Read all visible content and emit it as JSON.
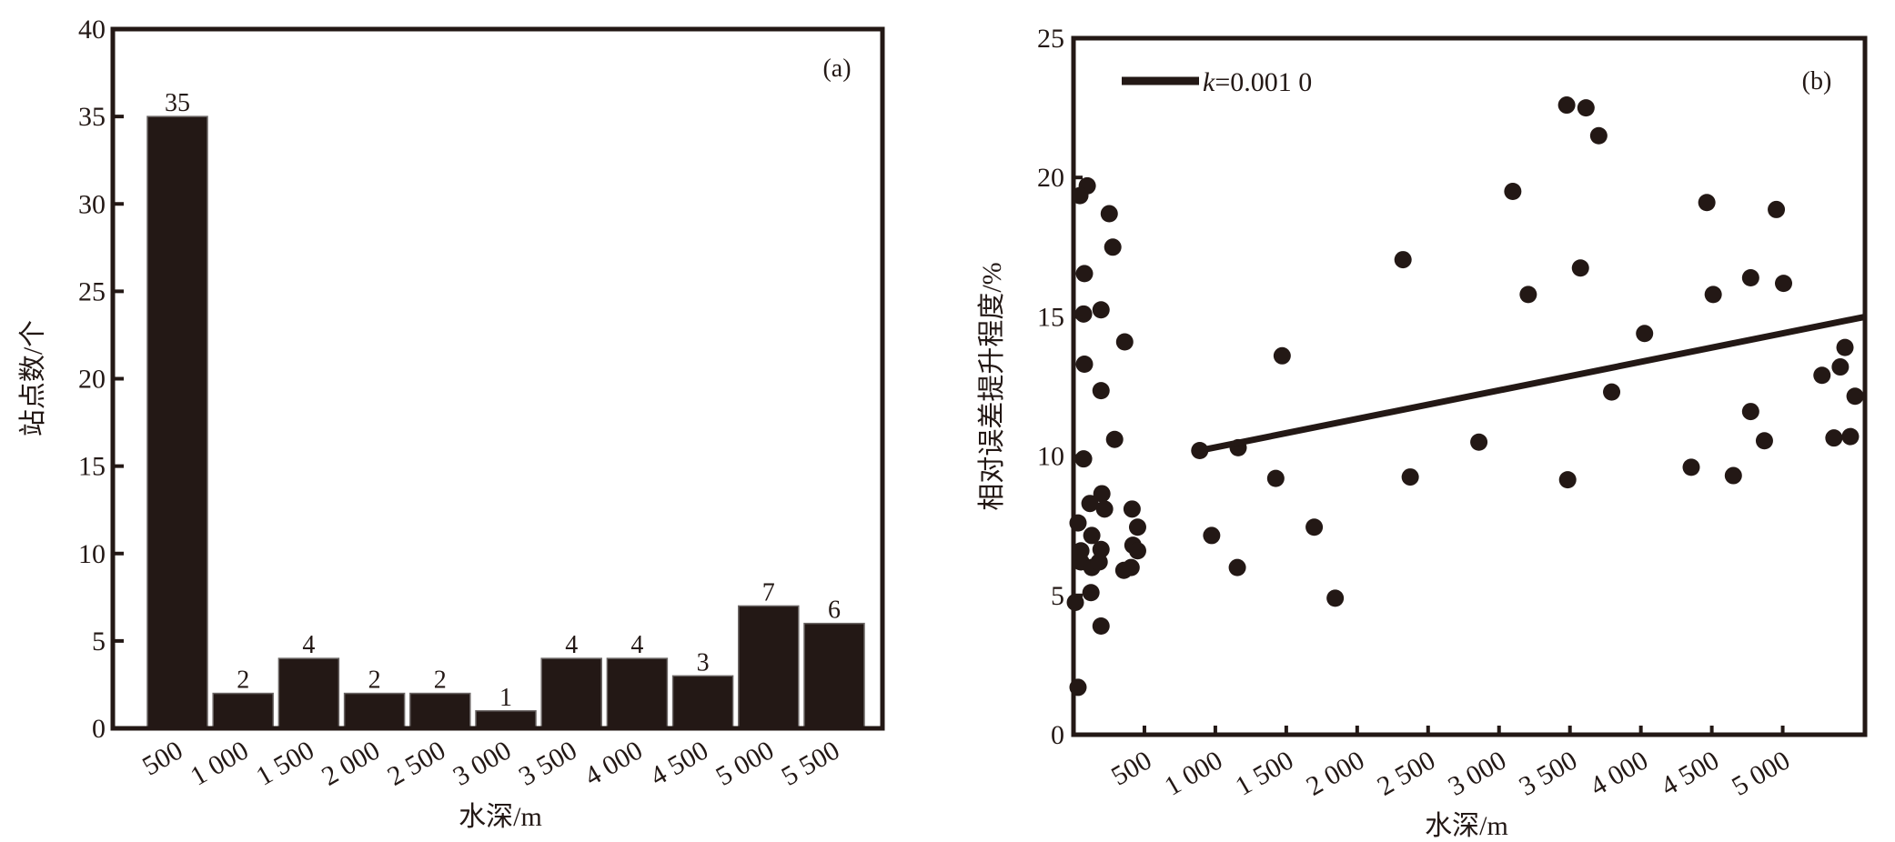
{
  "chart_data": [
    {
      "type": "bar",
      "panel_label": "(a)",
      "title": "",
      "xlabel": "水深/m",
      "ylabel": "站点数/个",
      "categories": [
        "500",
        "1 000",
        "1 500",
        "2 000",
        "2 500",
        "3 000",
        "3 500",
        "4 000",
        "4 500",
        "5 000",
        "5 500"
      ],
      "values": [
        35,
        2,
        4,
        2,
        2,
        1,
        4,
        4,
        3,
        7,
        6
      ],
      "data_labels": [
        "35",
        "2",
        "4",
        "2",
        "2",
        "1",
        "4",
        "4",
        "3",
        "7",
        "6"
      ],
      "ylim": [
        0,
        40
      ],
      "yticks": [
        0,
        5,
        10,
        15,
        20,
        25,
        30,
        35,
        40
      ],
      "ytick_labels": [
        "0",
        "5",
        "10",
        "15",
        "20",
        "25",
        "30",
        "35",
        "40"
      ],
      "grid": false,
      "bar_color": "#231815"
    },
    {
      "type": "scatter",
      "panel_label": "(b)",
      "title": "",
      "xlabel": "水深/m",
      "ylabel": "相对误差提升程度/%",
      "xlim": [
        0,
        5580
      ],
      "ylim": [
        0,
        25
      ],
      "xticks": [
        500,
        1000,
        1500,
        2000,
        2500,
        3000,
        3500,
        4000,
        4500,
        5000
      ],
      "xtick_labels": [
        "500",
        "1 000",
        "1 500",
        "2 000",
        "2 500",
        "3 000",
        "3 500",
        "4 000",
        "4 500",
        "5 000"
      ],
      "yticks": [
        0,
        5,
        10,
        15,
        20,
        25
      ],
      "ytick_labels": [
        "0",
        "5",
        "10",
        "15",
        "20",
        "25"
      ],
      "grid": false,
      "legend": {
        "position": "top-left",
        "entries": [
          {
            "italic": "k",
            "text": "=0.001 0"
          }
        ]
      },
      "trend_line": {
        "slope": 0.001,
        "x": [
          890,
          5580
        ],
        "y": [
          10.2,
          15.0
        ]
      },
      "marker_color": "#231815",
      "points": [
        [
          97,
          19.7
        ],
        [
          45,
          19.35
        ],
        [
          252,
          18.7
        ],
        [
          277,
          17.5
        ],
        [
          77,
          16.55
        ],
        [
          71,
          15.1
        ],
        [
          194,
          15.25
        ],
        [
          361,
          14.1
        ],
        [
          77,
          13.3
        ],
        [
          194,
          12.35
        ],
        [
          290,
          10.6
        ],
        [
          71,
          9.9
        ],
        [
          200,
          8.65
        ],
        [
          116,
          8.3
        ],
        [
          219,
          8.1
        ],
        [
          413,
          8.1
        ],
        [
          32,
          7.6
        ],
        [
          452,
          7.45
        ],
        [
          129,
          7.15
        ],
        [
          194,
          6.65
        ],
        [
          52,
          6.6
        ],
        [
          419,
          6.8
        ],
        [
          452,
          6.6
        ],
        [
          52,
          6.2
        ],
        [
          129,
          6.0
        ],
        [
          181,
          6.2
        ],
        [
          355,
          5.9
        ],
        [
          406,
          6.0
        ],
        [
          123,
          5.1
        ],
        [
          13,
          4.75
        ],
        [
          194,
          3.9
        ],
        [
          32,
          1.7
        ],
        [
          890,
          10.2
        ],
        [
          1161,
          10.3
        ],
        [
          1426,
          9.2
        ],
        [
          974,
          7.15
        ],
        [
          1155,
          6.0
        ],
        [
          1697,
          7.45
        ],
        [
          1845,
          4.9
        ],
        [
          1471,
          13.6
        ],
        [
          2323,
          17.05
        ],
        [
          2374,
          9.25
        ],
        [
          2858,
          10.5
        ],
        [
          3097,
          19.5
        ],
        [
          3206,
          15.8
        ],
        [
          3477,
          22.6
        ],
        [
          3613,
          22.5
        ],
        [
          3703,
          21.5
        ],
        [
          3574,
          16.75
        ],
        [
          3484,
          9.15
        ],
        [
          3794,
          12.3
        ],
        [
          4026,
          14.4
        ],
        [
          4355,
          9.6
        ],
        [
          4465,
          19.1
        ],
        [
          4510,
          15.8
        ],
        [
          4652,
          9.3
        ],
        [
          4774,
          16.4
        ],
        [
          4774,
          11.6
        ],
        [
          4871,
          10.55
        ],
        [
          4955,
          18.85
        ],
        [
          5006,
          16.2
        ],
        [
          5277,
          12.9
        ],
        [
          5406,
          13.2
        ],
        [
          5439,
          13.9
        ],
        [
          5361,
          10.65
        ],
        [
          5477,
          10.7
        ],
        [
          5510,
          12.15
        ]
      ]
    }
  ]
}
